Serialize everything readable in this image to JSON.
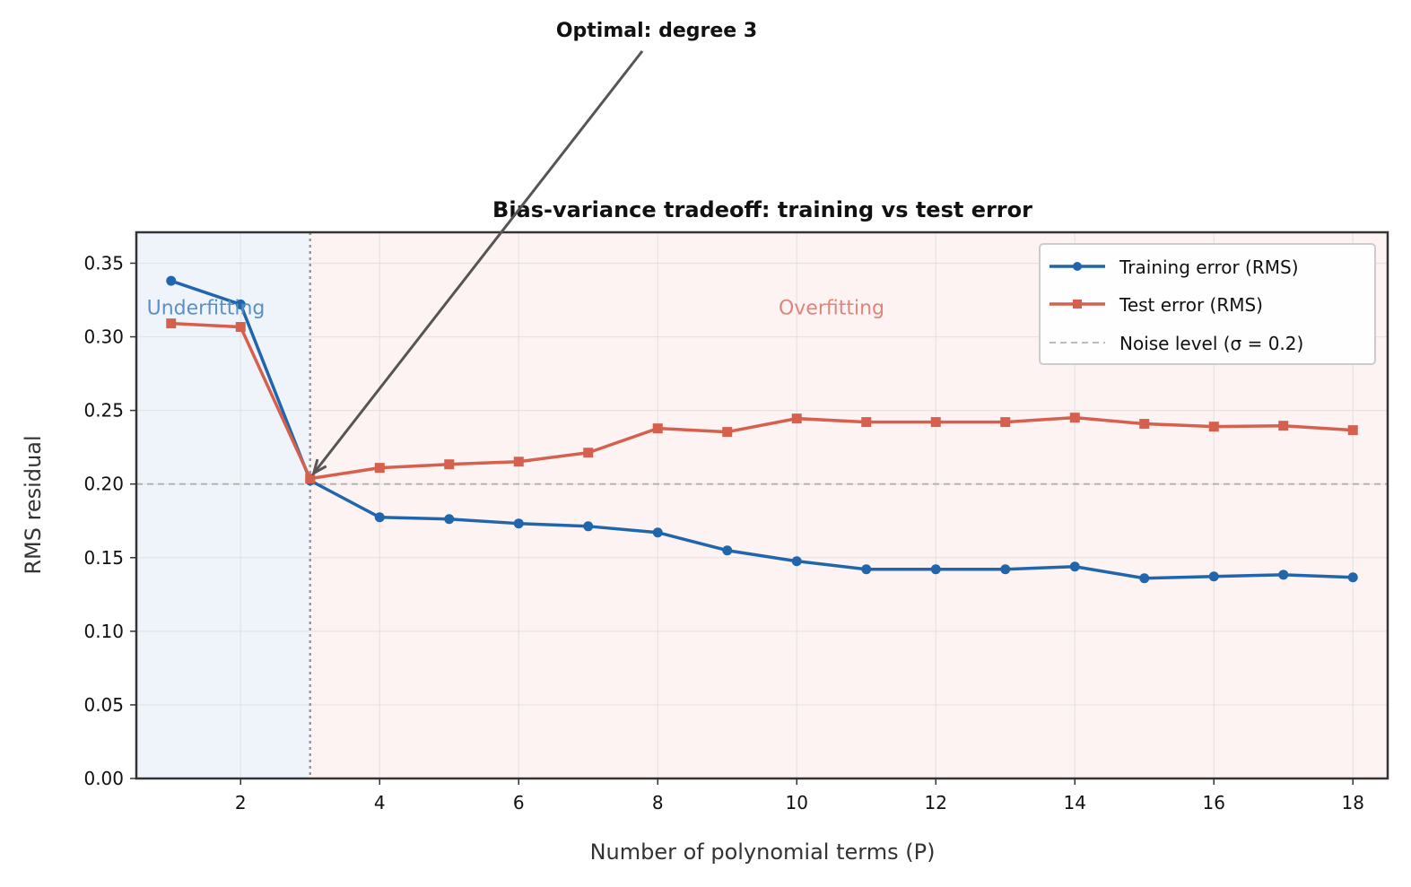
{
  "chart_data": {
    "type": "line",
    "title": "Bias-variance tradeoff: training vs test error",
    "xlabel": "Number of polynomial terms (P)",
    "ylabel": "RMS residual",
    "xlim": [
      0.5,
      18.5
    ],
    "ylim": [
      0,
      0.371
    ],
    "xticks": [
      2,
      4,
      6,
      8,
      10,
      12,
      14,
      16,
      18
    ],
    "yticks": [
      "0.00",
      "0.05",
      "0.10",
      "0.15",
      "0.20",
      "0.25",
      "0.30",
      "0.35"
    ],
    "grid": true,
    "legend_position": "top-right",
    "x": [
      1,
      2,
      3,
      4,
      5,
      6,
      7,
      8,
      9,
      10,
      11,
      12,
      13,
      14,
      15,
      16,
      17,
      18
    ],
    "series": [
      {
        "name": "Training error (RMS)",
        "color": "#2166ac",
        "marker": "circle",
        "values": [
          0.338,
          0.322,
          0.2024,
          0.1774,
          0.1762,
          0.1732,
          0.1713,
          0.1671,
          0.1549,
          0.1476,
          0.1421,
          0.1421,
          0.1421,
          0.1439,
          0.136,
          0.1372,
          0.1384,
          0.1366
        ]
      },
      {
        "name": "Test error (RMS)",
        "color": "#d6604d",
        "marker": "square",
        "values": [
          0.3091,
          0.3067,
          0.2037,
          0.211,
          0.2134,
          0.2152,
          0.2213,
          0.2378,
          0.2354,
          0.2445,
          0.2421,
          0.2421,
          0.2421,
          0.2451,
          0.2409,
          0.239,
          0.2396,
          0.2366
        ]
      }
    ],
    "reference_line": {
      "name": "Noise level (σ = 0.2)",
      "y": 0.2,
      "color": "#b0b0b0",
      "style": "dashed"
    },
    "optimal_line": {
      "x": 3,
      "color": "#999999",
      "style": "dotted"
    },
    "regions": [
      {
        "label": "Underfitting",
        "x_range": [
          0.5,
          3
        ],
        "fill": "#eef4fa",
        "label_color": "#5b8fc9"
      },
      {
        "label": "Overfitting",
        "x_range": [
          3,
          18.5
        ],
        "fill": "#fcf3f2",
        "label_color": "#e0847a"
      }
    ],
    "annotation": {
      "text": "Optimal: degree 3",
      "x": 3,
      "y": 0.2037
    }
  }
}
